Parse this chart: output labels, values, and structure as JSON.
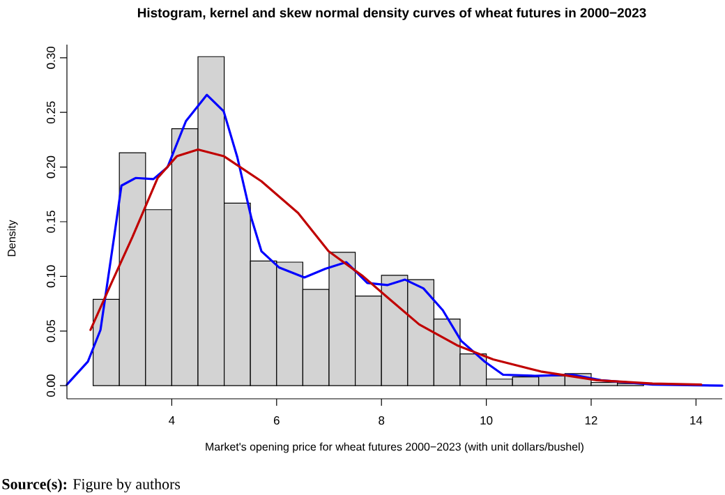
{
  "chart_data": {
    "type": "histogram",
    "title": "Histogram, kernel and skew normal density curves of wheat futures in 2000−2023",
    "xlabel": "Market's opening price for wheat futures 2000−2023 (with unit dollars/bushel)",
    "ylabel": "Density",
    "annotations": [
      "**Source(s):** Figure by authors"
    ],
    "bins": [
      2.5,
      3.0,
      3.5,
      4.0,
      4.5,
      5.0,
      5.5,
      6.0,
      6.5,
      7.0,
      7.5,
      8.0,
      8.5,
      9.0,
      9.5,
      10.0,
      10.5,
      11.0,
      11.5,
      12.0,
      12.5,
      13.0
    ],
    "values": [
      0.079,
      0.213,
      0.161,
      0.235,
      0.301,
      0.167,
      0.114,
      0.113,
      0.088,
      0.122,
      0.082,
      0.101,
      0.097,
      0.061,
      0.029,
      0.006,
      0.008,
      0.009,
      0.011,
      0.003,
      0.002
    ],
    "color": "#d3d3d3",
    "series": [
      {
        "type": "line",
        "color": "#0000ff",
        "x": [
          2.0,
          2.4,
          2.64,
          2.9,
          3.04,
          3.31,
          3.65,
          3.92,
          4.27,
          4.67,
          4.99,
          5.25,
          5.52,
          5.71,
          6.05,
          6.53,
          6.93,
          7.33,
          7.73,
          8.11,
          8.45,
          8.8,
          9.17,
          9.52,
          9.97,
          10.32,
          10.93,
          11.65,
          12.19,
          13.17,
          14.5
        ],
        "values": [
          0.001,
          0.022,
          0.051,
          0.136,
          0.183,
          0.19,
          0.189,
          0.2,
          0.242,
          0.266,
          0.251,
          0.209,
          0.153,
          0.123,
          0.108,
          0.099,
          0.107,
          0.113,
          0.094,
          0.092,
          0.097,
          0.089,
          0.069,
          0.041,
          0.022,
          0.01,
          0.009,
          0.01,
          0.005,
          0.001,
          0.0
        ]
      },
      {
        "type": "line",
        "color": "#c00000",
        "x": [
          2.45,
          2.85,
          3.25,
          3.73,
          4.1,
          4.5,
          4.99,
          5.71,
          6.41,
          6.99,
          7.65,
          8.11,
          8.72,
          9.44,
          10.13,
          11.04,
          12.11,
          13.17,
          14.1
        ],
        "values": [
          0.051,
          0.094,
          0.136,
          0.19,
          0.21,
          0.216,
          0.21,
          0.187,
          0.158,
          0.123,
          0.1,
          0.081,
          0.056,
          0.037,
          0.024,
          0.013,
          0.005,
          0.002,
          0.001
        ]
      }
    ],
    "xlim": [
      2.0,
      14.5
    ],
    "ylim": [
      -0.012,
      0.312
    ],
    "xticks": [
      4,
      6,
      8,
      10,
      12,
      14
    ],
    "yticks": [
      {
        "value": 0,
        "label": "0.00"
      },
      {
        "value": 0.05,
        "label": "0.05"
      },
      {
        "value": 0.1,
        "label": "0.10"
      },
      {
        "value": 0.15,
        "label": "0.15"
      },
      {
        "value": 0.2,
        "label": "0.20"
      },
      {
        "value": 0.25,
        "label": "0.25"
      },
      {
        "value": 0.3,
        "label": "0.30"
      }
    ]
  }
}
